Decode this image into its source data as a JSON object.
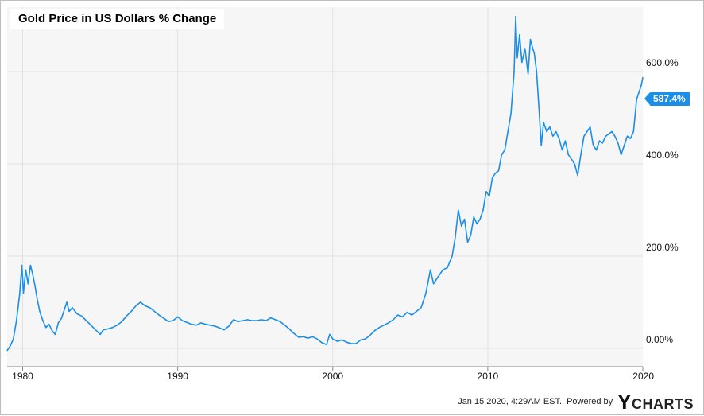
{
  "chart_data": {
    "type": "line",
    "title": "Gold Price in US Dollars % Change",
    "xlabel": "",
    "ylabel": "",
    "xlim": [
      1979.0,
      2020.0
    ],
    "ylim": [
      -40,
      740
    ],
    "grid": true,
    "x_ticks": [
      {
        "label": "1980",
        "value": 1980
      },
      {
        "label": "1990",
        "value": 1990
      },
      {
        "label": "2000",
        "value": 2000
      },
      {
        "label": "2010",
        "value": 2010
      },
      {
        "label": "2020",
        "value": 2020
      }
    ],
    "y_ticks": [
      {
        "label": "0.00%",
        "value": 0
      },
      {
        "label": "200.0%",
        "value": 200
      },
      {
        "label": "400.0%",
        "value": 400
      },
      {
        "label": "600.0%",
        "value": 600
      }
    ],
    "series": [
      {
        "name": "",
        "color": "#1a8ee8",
        "last_value_label": "587.4%",
        "points": [
          [
            1979.0,
            -5
          ],
          [
            1979.2,
            5
          ],
          [
            1979.4,
            20
          ],
          [
            1979.6,
            60
          ],
          [
            1979.8,
            115
          ],
          [
            1979.95,
            180
          ],
          [
            1980.05,
            120
          ],
          [
            1980.2,
            170
          ],
          [
            1980.35,
            140
          ],
          [
            1980.5,
            180
          ],
          [
            1980.65,
            160
          ],
          [
            1980.8,
            135
          ],
          [
            1980.95,
            105
          ],
          [
            1981.1,
            80
          ],
          [
            1981.3,
            60
          ],
          [
            1981.5,
            45
          ],
          [
            1981.7,
            52
          ],
          [
            1981.9,
            38
          ],
          [
            1982.1,
            30
          ],
          [
            1982.3,
            55
          ],
          [
            1982.5,
            65
          ],
          [
            1982.7,
            85
          ],
          [
            1982.85,
            100
          ],
          [
            1983.0,
            80
          ],
          [
            1983.2,
            88
          ],
          [
            1983.5,
            75
          ],
          [
            1983.8,
            70
          ],
          [
            1984.1,
            60
          ],
          [
            1984.4,
            50
          ],
          [
            1984.7,
            40
          ],
          [
            1985.0,
            30
          ],
          [
            1985.2,
            40
          ],
          [
            1985.5,
            42
          ],
          [
            1985.8,
            45
          ],
          [
            1986.1,
            50
          ],
          [
            1986.4,
            58
          ],
          [
            1986.7,
            70
          ],
          [
            1987.0,
            80
          ],
          [
            1987.3,
            92
          ],
          [
            1987.6,
            100
          ],
          [
            1987.9,
            92
          ],
          [
            1988.2,
            88
          ],
          [
            1988.5,
            80
          ],
          [
            1988.8,
            72
          ],
          [
            1989.1,
            65
          ],
          [
            1989.4,
            58
          ],
          [
            1989.7,
            60
          ],
          [
            1990.0,
            68
          ],
          [
            1990.3,
            60
          ],
          [
            1990.6,
            56
          ],
          [
            1990.9,
            52
          ],
          [
            1991.2,
            50
          ],
          [
            1991.5,
            55
          ],
          [
            1991.8,
            52
          ],
          [
            1992.1,
            50
          ],
          [
            1992.4,
            48
          ],
          [
            1992.7,
            44
          ],
          [
            1993.0,
            40
          ],
          [
            1993.3,
            48
          ],
          [
            1993.6,
            62
          ],
          [
            1993.9,
            58
          ],
          [
            1994.2,
            60
          ],
          [
            1994.5,
            62
          ],
          [
            1994.8,
            60
          ],
          [
            1995.1,
            60
          ],
          [
            1995.4,
            62
          ],
          [
            1995.7,
            60
          ],
          [
            1996.0,
            66
          ],
          [
            1996.3,
            62
          ],
          [
            1996.6,
            58
          ],
          [
            1996.9,
            50
          ],
          [
            1997.2,
            42
          ],
          [
            1997.5,
            32
          ],
          [
            1997.8,
            24
          ],
          [
            1998.1,
            25
          ],
          [
            1998.4,
            22
          ],
          [
            1998.7,
            25
          ],
          [
            1999.0,
            20
          ],
          [
            1999.3,
            12
          ],
          [
            1999.6,
            8
          ],
          [
            1999.8,
            30
          ],
          [
            2000.0,
            20
          ],
          [
            2000.3,
            15
          ],
          [
            2000.6,
            18
          ],
          [
            2000.9,
            13
          ],
          [
            2001.2,
            10
          ],
          [
            2001.5,
            10
          ],
          [
            2001.8,
            18
          ],
          [
            2002.1,
            20
          ],
          [
            2002.4,
            28
          ],
          [
            2002.7,
            38
          ],
          [
            2003.0,
            45
          ],
          [
            2003.3,
            50
          ],
          [
            2003.6,
            55
          ],
          [
            2003.9,
            62
          ],
          [
            2004.2,
            72
          ],
          [
            2004.5,
            68
          ],
          [
            2004.8,
            78
          ],
          [
            2005.1,
            72
          ],
          [
            2005.4,
            80
          ],
          [
            2005.7,
            88
          ],
          [
            2006.0,
            118
          ],
          [
            2006.3,
            170
          ],
          [
            2006.5,
            140
          ],
          [
            2006.8,
            155
          ],
          [
            2007.1,
            170
          ],
          [
            2007.4,
            175
          ],
          [
            2007.7,
            200
          ],
          [
            2007.9,
            240
          ],
          [
            2008.1,
            300
          ],
          [
            2008.3,
            265
          ],
          [
            2008.5,
            280
          ],
          [
            2008.7,
            230
          ],
          [
            2008.9,
            245
          ],
          [
            2009.1,
            285
          ],
          [
            2009.3,
            270
          ],
          [
            2009.5,
            280
          ],
          [
            2009.7,
            300
          ],
          [
            2009.9,
            340
          ],
          [
            2010.1,
            330
          ],
          [
            2010.3,
            370
          ],
          [
            2010.5,
            380
          ],
          [
            2010.7,
            385
          ],
          [
            2010.9,
            420
          ],
          [
            2011.1,
            430
          ],
          [
            2011.3,
            470
          ],
          [
            2011.5,
            510
          ],
          [
            2011.7,
            600
          ],
          [
            2011.8,
            720
          ],
          [
            2011.9,
            630
          ],
          [
            2012.05,
            680
          ],
          [
            2012.2,
            620
          ],
          [
            2012.4,
            650
          ],
          [
            2012.6,
            595
          ],
          [
            2012.75,
            670
          ],
          [
            2012.9,
            650
          ],
          [
            2013.0,
            640
          ],
          [
            2013.15,
            600
          ],
          [
            2013.3,
            520
          ],
          [
            2013.45,
            440
          ],
          [
            2013.6,
            490
          ],
          [
            2013.8,
            470
          ],
          [
            2014.0,
            480
          ],
          [
            2014.2,
            460
          ],
          [
            2014.4,
            470
          ],
          [
            2014.6,
            455
          ],
          [
            2014.8,
            430
          ],
          [
            2015.0,
            450
          ],
          [
            2015.2,
            420
          ],
          [
            2015.4,
            410
          ],
          [
            2015.6,
            400
          ],
          [
            2015.8,
            375
          ],
          [
            2016.0,
            420
          ],
          [
            2016.2,
            460
          ],
          [
            2016.4,
            470
          ],
          [
            2016.6,
            480
          ],
          [
            2016.8,
            440
          ],
          [
            2017.0,
            430
          ],
          [
            2017.2,
            450
          ],
          [
            2017.4,
            445
          ],
          [
            2017.6,
            460
          ],
          [
            2017.8,
            465
          ],
          [
            2018.0,
            470
          ],
          [
            2018.2,
            460
          ],
          [
            2018.4,
            445
          ],
          [
            2018.6,
            420
          ],
          [
            2018.8,
            440
          ],
          [
            2019.0,
            460
          ],
          [
            2019.2,
            455
          ],
          [
            2019.4,
            470
          ],
          [
            2019.6,
            540
          ],
          [
            2019.8,
            560
          ],
          [
            2019.9,
            570
          ],
          [
            2020.0,
            587.4
          ]
        ]
      }
    ]
  },
  "footer": {
    "timestamp": "Jan 15 2020, 4:29AM EST.",
    "powered_by": "Powered by",
    "brand_y": "Y",
    "brand_rest": "CHARTS"
  },
  "colors": {
    "line": "#1a8ee8",
    "plot_bg": "#f6f6f6",
    "grid": "#e2e2e2"
  }
}
